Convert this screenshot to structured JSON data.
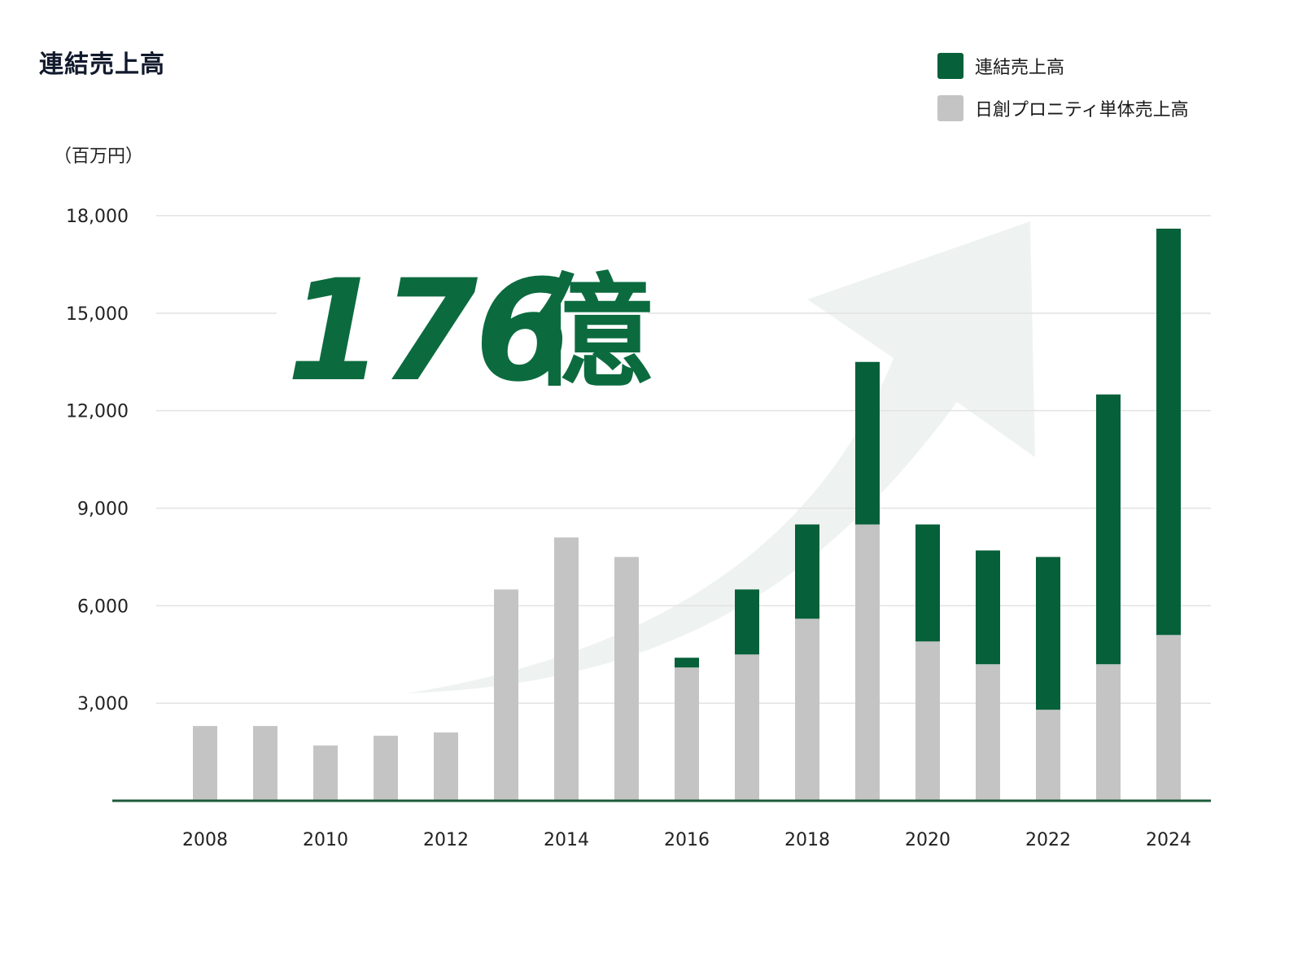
{
  "title": "連結売上高",
  "unit_label": "（百万円）",
  "highlight": {
    "number": "176",
    "suffix": "億"
  },
  "colors": {
    "consolidated": "#06603a",
    "standalone": "#c4c4c4",
    "baseline": "#1d5b3a",
    "grid": "#e2e2e2",
    "highlight": "#0b6b3f",
    "arrow": "#eef3f1"
  },
  "legend": [
    {
      "label": "連結売上高",
      "color": "#06603a"
    },
    {
      "label": "日創プロニティ単体売上高",
      "color": "#c4c4c4"
    }
  ],
  "chart_data": {
    "type": "bar",
    "stacked": true,
    "title": "連結売上高",
    "ylabel": "（百万円）",
    "ylim": [
      0,
      18000
    ],
    "yticks": [
      3000,
      6000,
      9000,
      12000,
      15000,
      18000
    ],
    "ytick_labels": [
      "3,000",
      "6,000",
      "9,000",
      "12,000",
      "15,000",
      "18,000"
    ],
    "categories": [
      "2008",
      "2009",
      "2010",
      "2011",
      "2012",
      "2013",
      "2014",
      "2015",
      "2016",
      "2017",
      "2018",
      "2019",
      "2020",
      "2021",
      "2022",
      "2023",
      "2024"
    ],
    "xtick_labels": [
      "2008",
      "",
      "2010",
      "",
      "2012",
      "",
      "2014",
      "",
      "2016",
      "",
      "2018",
      "",
      "2020",
      "",
      "2022",
      "",
      "2024"
    ],
    "series": [
      {
        "name": "日創プロニティ単体売上高",
        "values": [
          2300,
          2300,
          1700,
          2000,
          2100,
          6500,
          8100,
          7500,
          4100,
          4500,
          5600,
          8500,
          4900,
          4200,
          2800,
          4200,
          5100
        ]
      },
      {
        "name": "連結売上高",
        "values": [
          0,
          0,
          0,
          0,
          0,
          0,
          0,
          0,
          300,
          2000,
          2900,
          5000,
          3600,
          3500,
          4700,
          8300,
          12500
        ]
      }
    ],
    "grid": true,
    "legend_position": "top-right"
  }
}
